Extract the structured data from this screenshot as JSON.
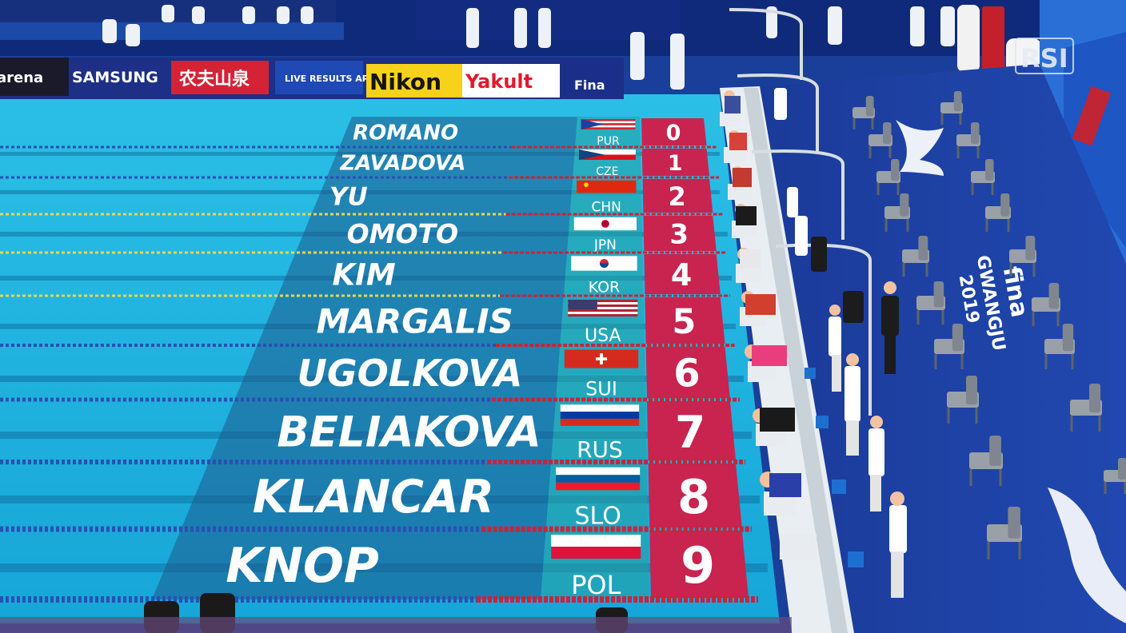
{
  "broadcaster": {
    "logo_text": "RSI"
  },
  "event": {
    "floor_text_city": "GWANGJU",
    "floor_text_year": "2019",
    "floor_text_brand": "fina"
  },
  "sponsors": {
    "items": [
      {
        "label": "arena"
      },
      {
        "label": "SAMSUNG"
      },
      {
        "label": "农夫山泉"
      },
      {
        "label": "LIVE RESULTS APP"
      },
      {
        "label": "Nikon"
      },
      {
        "label": "Yakult"
      },
      {
        "label": "Fina"
      }
    ]
  },
  "lanes": [
    {
      "lane": "0",
      "name": "ROMANO",
      "code": "PUR"
    },
    {
      "lane": "1",
      "name": "ZAVADOVA",
      "code": "CZE"
    },
    {
      "lane": "2",
      "name": "YU",
      "code": "CHN"
    },
    {
      "lane": "3",
      "name": "OMOTO",
      "code": "JPN"
    },
    {
      "lane": "4",
      "name": "KIM",
      "code": "KOR"
    },
    {
      "lane": "5",
      "name": "MARGALIS",
      "code": "USA"
    },
    {
      "lane": "6",
      "name": "UGOLKOVA",
      "code": "SUI"
    },
    {
      "lane": "7",
      "name": "BELIAKOVA",
      "code": "RUS"
    },
    {
      "lane": "8",
      "name": "KLANCAR",
      "code": "SLO"
    },
    {
      "lane": "9",
      "name": "KNOP",
      "code": "POL"
    }
  ],
  "colors": {
    "pool_water": "#19b3e0",
    "overlay_band": "#1f6b95",
    "lane_number_box": "#c8244f",
    "deck": "#1c3c9a",
    "sponsor_board": "#1d2f86"
  }
}
